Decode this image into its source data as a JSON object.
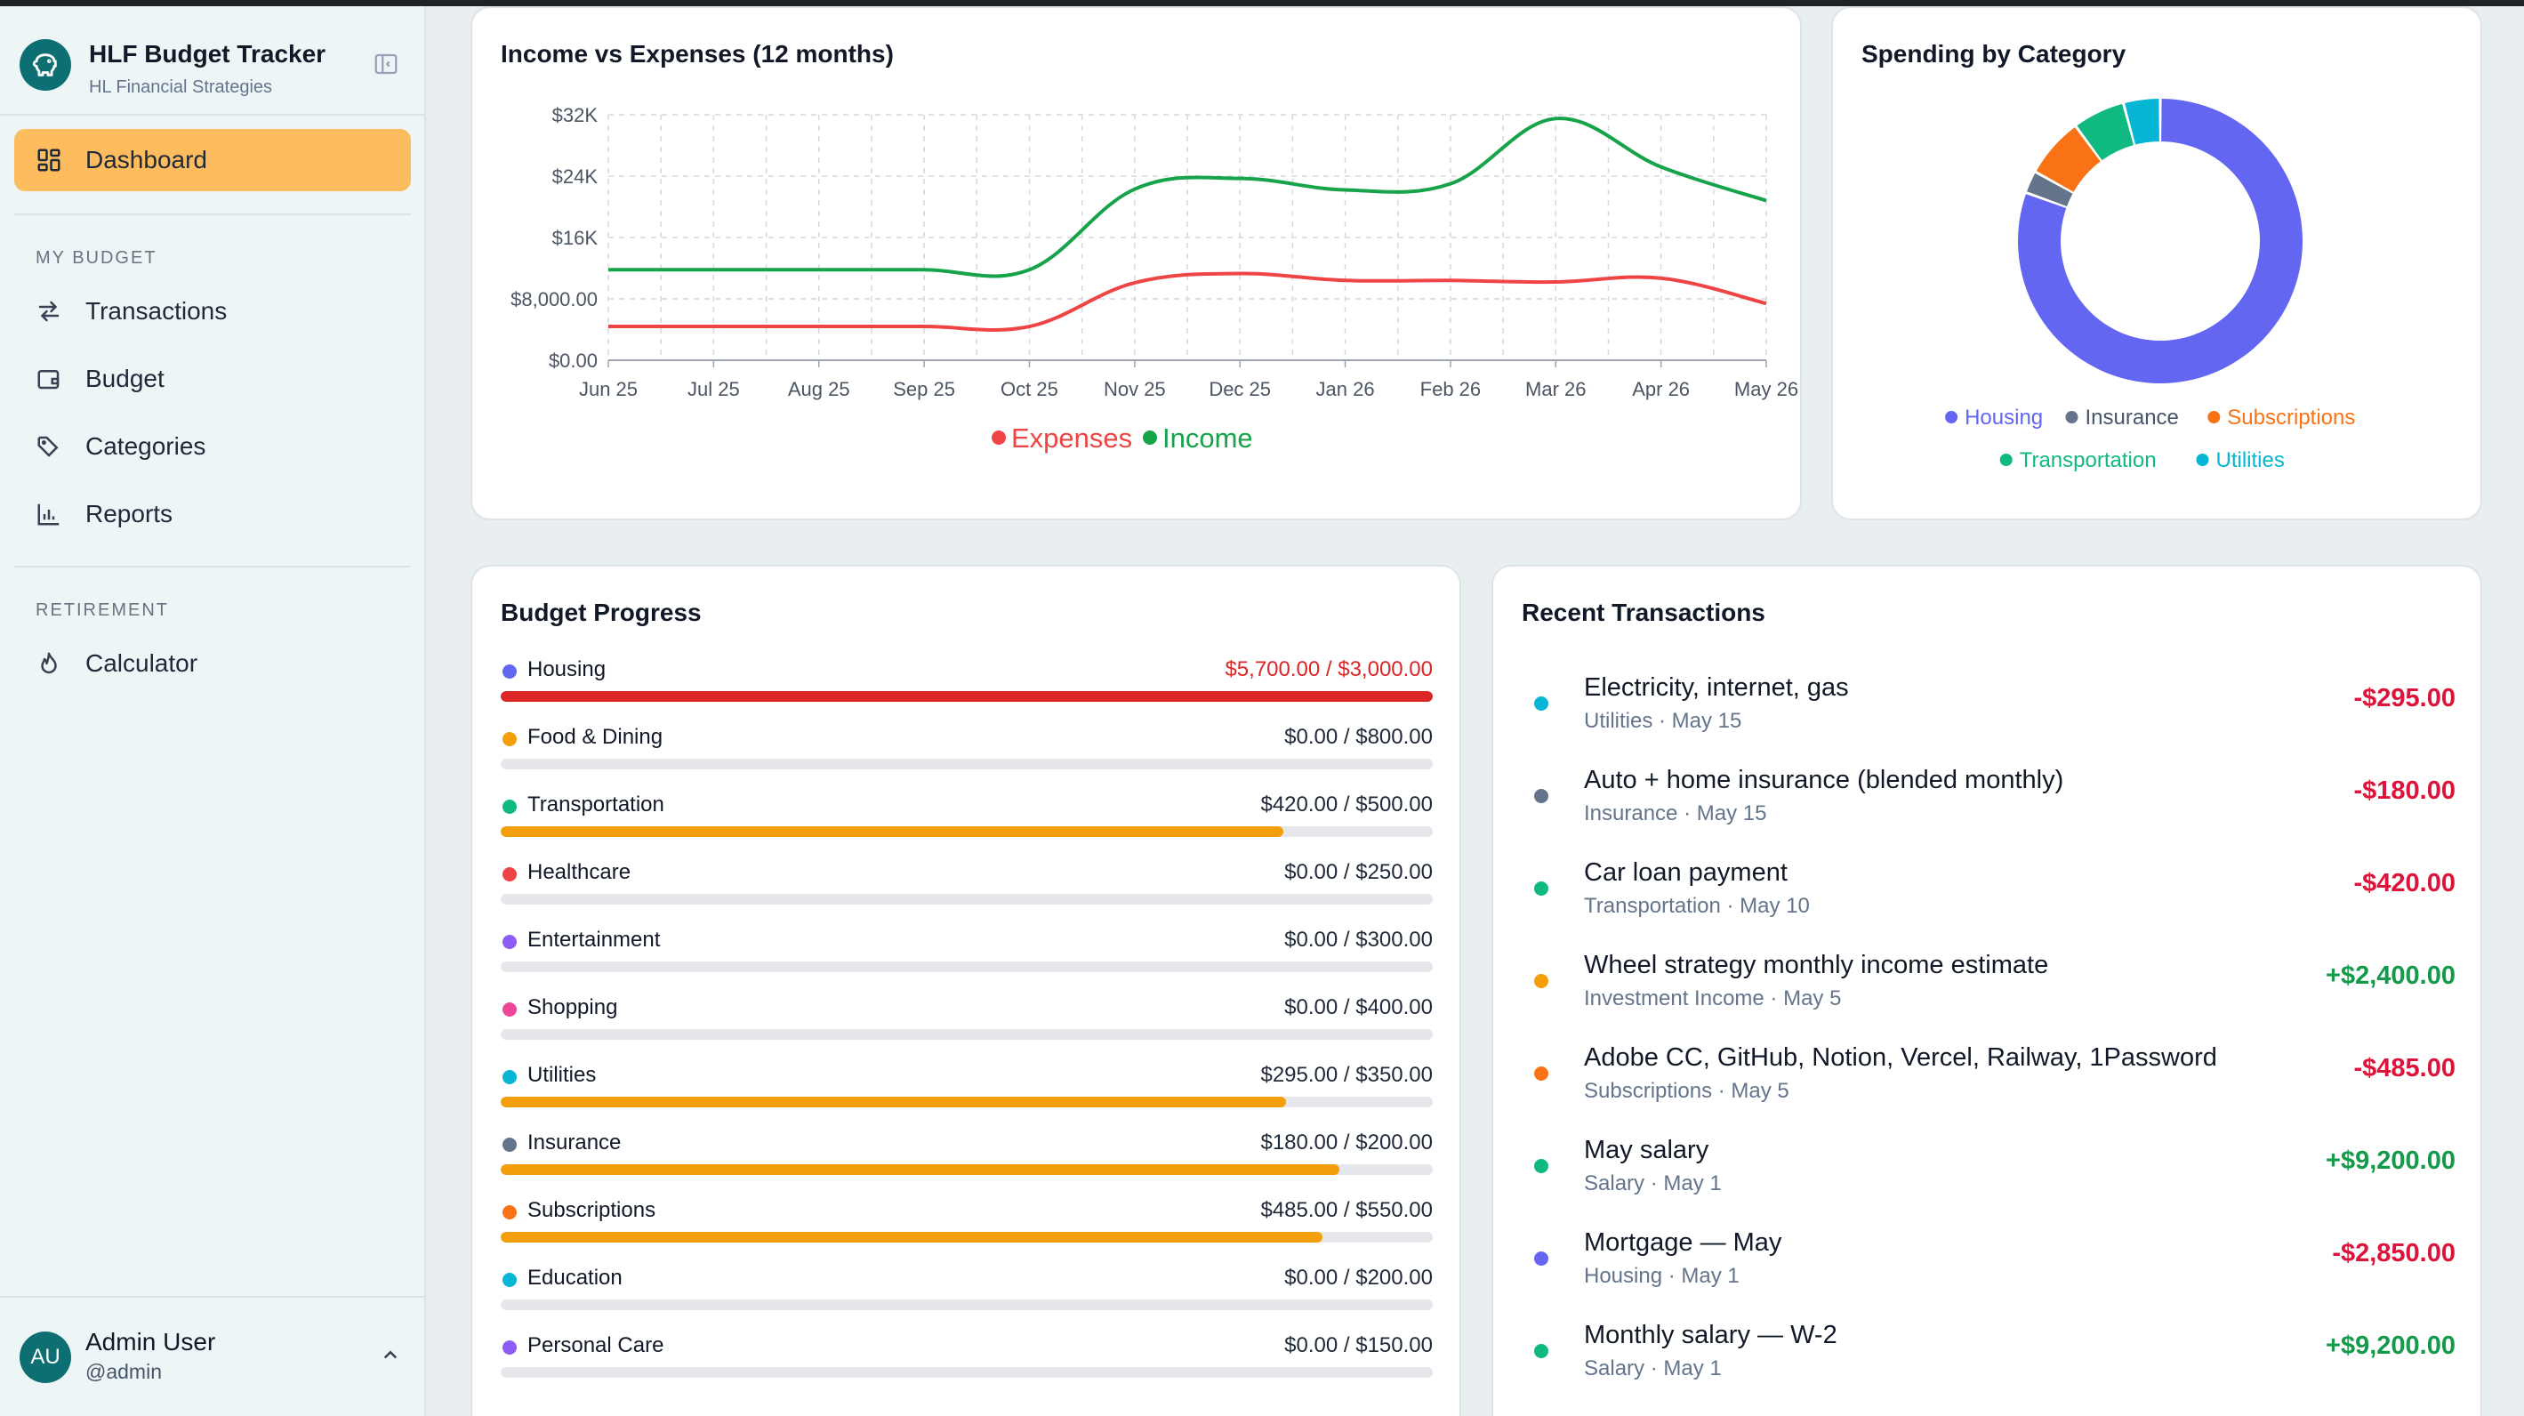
{
  "app": {
    "title": "HLF Budget Tracker",
    "subtitle": "HL Financial Strategies"
  },
  "sidebar": {
    "dashboard": "Dashboard",
    "section_budget": "MY BUDGET",
    "items": [
      {
        "label": "Transactions",
        "icon": "arrows-swap-icon"
      },
      {
        "label": "Budget",
        "icon": "wallet-icon"
      },
      {
        "label": "Categories",
        "icon": "tags-icon"
      },
      {
        "label": "Reports",
        "icon": "bar-chart-icon"
      }
    ],
    "section_retirement": "RETIREMENT",
    "calculator": "Calculator",
    "user": {
      "initials": "AU",
      "name": "Admin User",
      "handle": "@admin"
    }
  },
  "colors": {
    "accent": "#fdbd5f",
    "brand": "#0e6f73",
    "income": "#16a34a",
    "expenses": "#ef4444",
    "negative": "#dc143c",
    "positive": "#15994a",
    "over_budget": "#dc2626",
    "bar": "#f59e0b"
  },
  "income_expenses": {
    "title": "Income vs Expenses (12 months)"
  },
  "spending": {
    "title": "Spending by Category"
  },
  "chart_data": [
    {
      "type": "line",
      "title": "Income vs Expenses (12 months)",
      "x": [
        "Jun 25",
        "Jul 25",
        "Aug 25",
        "Sep 25",
        "Oct 25",
        "Nov 25",
        "Dec 25",
        "Jan 26",
        "Feb 26",
        "Mar 26",
        "Apr 26",
        "May 26"
      ],
      "yticks": [
        "$0.00",
        "$8,000.00",
        "$16K",
        "$24K",
        "$32K"
      ],
      "ylim": [
        0,
        32000
      ],
      "series": [
        {
          "name": "Expenses",
          "color": "#ef4444",
          "values": [
            4400,
            4400,
            4400,
            4400,
            4400,
            10100,
            11300,
            10400,
            10400,
            10200,
            10700,
            7400
          ]
        },
        {
          "name": "Income",
          "color": "#16a34a",
          "values": [
            11800,
            11800,
            11800,
            11800,
            11800,
            22300,
            23700,
            22200,
            23000,
            31500,
            25200,
            20800
          ]
        }
      ],
      "grid": true,
      "legend": "bottom"
    },
    {
      "type": "pie",
      "title": "Spending by Category",
      "categories": [
        "Housing",
        "Insurance",
        "Subscriptions",
        "Transportation",
        "Utilities"
      ],
      "values": [
        5700,
        180,
        485,
        420,
        295
      ],
      "colors": [
        "#6366f1",
        "#64748b",
        "#f97316",
        "#10b981",
        "#06b6d4"
      ],
      "legend": "bottom"
    }
  ],
  "budget": {
    "title": "Budget Progress",
    "rows": [
      {
        "name": "Housing",
        "amount": "$5,700.00 / $3,000.00",
        "dot": "#6366f1",
        "progress": 1.0,
        "over": true
      },
      {
        "name": "Food & Dining",
        "amount": "$0.00 / $800.00",
        "dot": "#f59e0b",
        "progress": 0,
        "over": false
      },
      {
        "name": "Transportation",
        "amount": "$420.00 / $500.00",
        "dot": "#10b981",
        "progress": 0.84,
        "over": false
      },
      {
        "name": "Healthcare",
        "amount": "$0.00 / $250.00",
        "dot": "#ef4444",
        "progress": 0,
        "over": false
      },
      {
        "name": "Entertainment",
        "amount": "$0.00 / $300.00",
        "dot": "#8b5cf6",
        "progress": 0,
        "over": false
      },
      {
        "name": "Shopping",
        "amount": "$0.00 / $400.00",
        "dot": "#ec4899",
        "progress": 0,
        "over": false
      },
      {
        "name": "Utilities",
        "amount": "$295.00 / $350.00",
        "dot": "#06b6d4",
        "progress": 0.843,
        "over": false
      },
      {
        "name": "Insurance",
        "amount": "$180.00 / $200.00",
        "dot": "#64748b",
        "progress": 0.9,
        "over": false
      },
      {
        "name": "Subscriptions",
        "amount": "$485.00 / $550.00",
        "dot": "#f97316",
        "progress": 0.882,
        "over": false
      },
      {
        "name": "Education",
        "amount": "$0.00 / $200.00",
        "dot": "#06b6d4",
        "progress": 0,
        "over": false
      },
      {
        "name": "Personal Care",
        "amount": "$0.00 / $150.00",
        "dot": "#8b5cf6",
        "progress": 0,
        "over": false
      }
    ]
  },
  "transactions": {
    "title": "Recent Transactions",
    "rows": [
      {
        "desc": "Electricity, internet, gas",
        "meta": "Utilities · May 15",
        "amount": "-$295.00",
        "dot": "#06b6d4",
        "positive": false
      },
      {
        "desc": "Auto + home insurance (blended monthly)",
        "meta": "Insurance · May 15",
        "amount": "-$180.00",
        "dot": "#64748b",
        "positive": false
      },
      {
        "desc": "Car loan payment",
        "meta": "Transportation · May 10",
        "amount": "-$420.00",
        "dot": "#10b981",
        "positive": false
      },
      {
        "desc": "Wheel strategy monthly income estimate",
        "meta": "Investment Income · May 5",
        "amount": "+$2,400.00",
        "dot": "#f59e0b",
        "positive": true
      },
      {
        "desc": "Adobe CC, GitHub, Notion, Vercel, Railway, 1Password",
        "meta": "Subscriptions · May 5",
        "amount": "-$485.00",
        "dot": "#f97316",
        "positive": false
      },
      {
        "desc": "May salary",
        "meta": "Salary · May 1",
        "amount": "+$9,200.00",
        "dot": "#10b981",
        "positive": true
      },
      {
        "desc": "Mortgage — May",
        "meta": "Housing · May 1",
        "amount": "-$2,850.00",
        "dot": "#6366f1",
        "positive": false
      },
      {
        "desc": "Monthly salary — W-2",
        "meta": "Salary · May 1",
        "amount": "+$9,200.00",
        "dot": "#10b981",
        "positive": true
      }
    ]
  }
}
